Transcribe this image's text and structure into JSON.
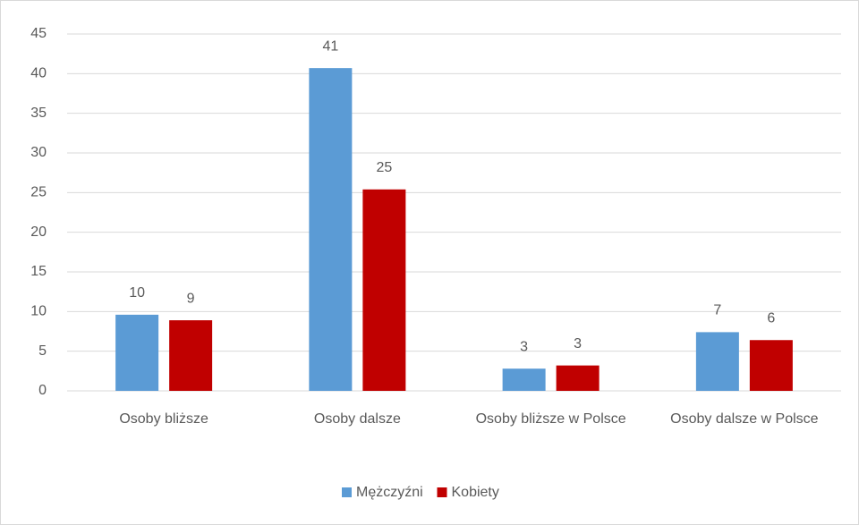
{
  "chart_data": {
    "type": "bar",
    "categories": [
      "Osoby bliższe",
      "Osoby dalsze",
      "Osoby bliższe w Polsce",
      "Osoby dalsze w Polsce"
    ],
    "series": [
      {
        "name": "Mężczyźni",
        "color": "#5b9bd5",
        "values": [
          9.6,
          40.7,
          2.8,
          7.4
        ],
        "value_labels": [
          "10",
          "41",
          "3",
          "7"
        ]
      },
      {
        "name": "Kobiety",
        "color": "#c00000",
        "values": [
          8.9,
          25.4,
          3.2,
          6.4
        ],
        "value_labels": [
          "9",
          "25",
          "3",
          "6"
        ]
      }
    ],
    "ylim": [
      0,
      45
    ],
    "yticks": [
      0,
      5,
      10,
      15,
      20,
      25,
      30,
      35,
      40,
      45
    ],
    "grid": true,
    "legend": "bottom"
  }
}
